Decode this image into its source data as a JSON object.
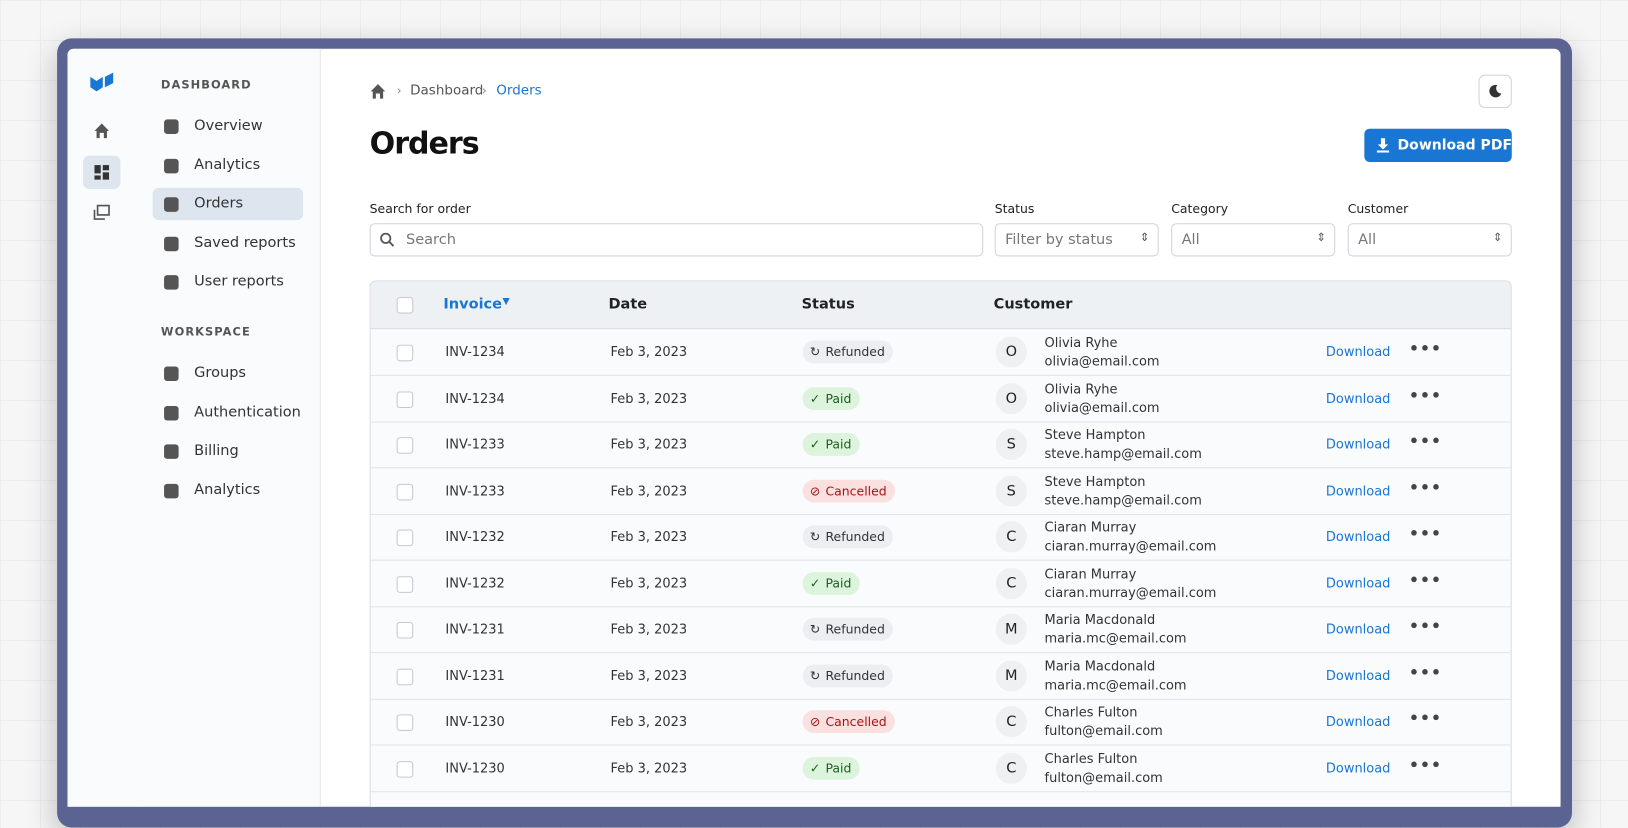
{
  "sidebar": {
    "sections": [
      {
        "title": "DASHBOARD",
        "items": [
          "Overview",
          "Analytics",
          "Orders",
          "Saved reports",
          "User reports"
        ]
      },
      {
        "title": "WORKSPACE",
        "items": [
          "Groups",
          "Authentication",
          "Billing",
          "Analytics"
        ]
      }
    ]
  },
  "breadcrumb": [
    "Dashboard",
    "Orders"
  ],
  "page": {
    "title": "Orders",
    "download_button": "Download PDF"
  },
  "filters": {
    "search": {
      "label": "Search for order",
      "placeholder": "Search"
    },
    "status": {
      "label": "Status",
      "placeholder": "Filter by status"
    },
    "category": {
      "label": "Category",
      "value": "All"
    },
    "customer": {
      "label": "Customer",
      "value": "All"
    }
  },
  "table": {
    "columns": [
      "Invoice",
      "Date",
      "Status",
      "Customer"
    ],
    "rows": [
      {
        "invoice": "INV-1234",
        "date": "Feb 3, 2023",
        "status": "Refunded",
        "avatar": "O",
        "name": "Olivia Ryhe",
        "email": "olivia@email.com",
        "action": "Download"
      },
      {
        "invoice": "INV-1234",
        "date": "Feb 3, 2023",
        "status": "Paid",
        "avatar": "O",
        "name": "Olivia Ryhe",
        "email": "olivia@email.com",
        "action": "Download"
      },
      {
        "invoice": "INV-1233",
        "date": "Feb 3, 2023",
        "status": "Paid",
        "avatar": "S",
        "name": "Steve Hampton",
        "email": "steve.hamp@email.com",
        "action": "Download"
      },
      {
        "invoice": "INV-1233",
        "date": "Feb 3, 2023",
        "status": "Cancelled",
        "avatar": "S",
        "name": "Steve Hampton",
        "email": "steve.hamp@email.com",
        "action": "Download"
      },
      {
        "invoice": "INV-1232",
        "date": "Feb 3, 2023",
        "status": "Refunded",
        "avatar": "C",
        "name": "Ciaran Murray",
        "email": "ciaran.murray@email.com",
        "action": "Download"
      },
      {
        "invoice": "INV-1232",
        "date": "Feb 3, 2023",
        "status": "Paid",
        "avatar": "C",
        "name": "Ciaran Murray",
        "email": "ciaran.murray@email.com",
        "action": "Download"
      },
      {
        "invoice": "INV-1231",
        "date": "Feb 3, 2023",
        "status": "Refunded",
        "avatar": "M",
        "name": "Maria Macdonald",
        "email": "maria.mc@email.com",
        "action": "Download"
      },
      {
        "invoice": "INV-1231",
        "date": "Feb 3, 2023",
        "status": "Refunded",
        "avatar": "M",
        "name": "Maria Macdonald",
        "email": "maria.mc@email.com",
        "action": "Download"
      },
      {
        "invoice": "INV-1230",
        "date": "Feb 3, 2023",
        "status": "Cancelled",
        "avatar": "C",
        "name": "Charles Fulton",
        "email": "fulton@email.com",
        "action": "Download"
      },
      {
        "invoice": "INV-1230",
        "date": "Feb 3, 2023",
        "status": "Paid",
        "avatar": "C",
        "name": "Charles Fulton",
        "email": "fulton@email.com",
        "action": "Download"
      }
    ]
  }
}
